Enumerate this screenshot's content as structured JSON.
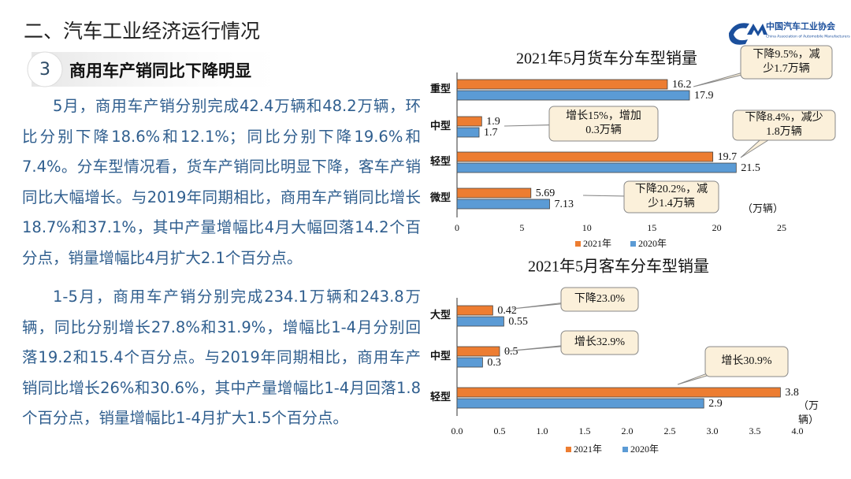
{
  "header": {
    "title": "二、汽车工业经济运行情况",
    "section_number": "3",
    "section_title": "商用车产销同比下降明显",
    "logo_name": "中国汽车工业协会",
    "logo_english": "China Association of Automobile Manufacturers"
  },
  "paragraphs": [
    "5月，商用车产销分别完成42.4万辆和48.2万辆，环比分别下降18.6%和12.1%；同比分别下降19.6%和7.4%。分车型情况看，货车产销同比明显下降，客车产销同比大幅增长。与2019年同期相比，商用车产销同比增长18.7%和37.1%，其中产量增幅比4月大幅回落14.2个百分点，销量增幅比4月扩大2.1个百分点。",
    "1-5月，商用车产销分别完成234.1万辆和243.8万辆，同比分别增长27.8%和31.9%，增幅比1-4月分别回落19.2和15.4个百分点。与2019年同期相比，商用车产销同比增长26%和30.6%，其中产量增幅比1-4月回落1.8个百分点，销量增幅比1-4月扩大1.5个百分点。"
  ],
  "chart_data": [
    {
      "type": "hbar",
      "title": "2021年5月货车分车型销量",
      "categories": [
        "重型",
        "中型",
        "轻型",
        "微型"
      ],
      "series": [
        {
          "name": "2021年",
          "color": "#ED7D31",
          "values": [
            16.2,
            1.9,
            19.7,
            5.69
          ]
        },
        {
          "name": "2020年",
          "color": "#5B9BD5",
          "values": [
            17.9,
            1.7,
            21.5,
            7.13
          ]
        }
      ],
      "xlim": [
        0,
        25
      ],
      "xticks": [
        0,
        5,
        10,
        15,
        20,
        25
      ],
      "unit_label": [
        "（万辆）"
      ],
      "annotations": [
        {
          "lines": [
            "下降9.5%，减",
            "少1.7万辆"
          ]
        },
        {
          "lines": [
            "增长15%，增加",
            "0.3万辆"
          ]
        },
        {
          "lines": [
            "下降8.4%，减少",
            "1.8万辆"
          ]
        },
        {
          "lines": [
            "下降20.2%，减",
            "少1.4万辆"
          ]
        }
      ]
    },
    {
      "type": "hbar",
      "title": "2021年5月客车分车型销量",
      "categories": [
        "大型",
        "中型",
        "轻型"
      ],
      "series": [
        {
          "name": "2021年",
          "color": "#ED7D31",
          "values": [
            0.42,
            0.5,
            3.8
          ]
        },
        {
          "name": "2020年",
          "color": "#5B9BD5",
          "values": [
            0.55,
            0.3,
            2.9
          ]
        }
      ],
      "xlim": [
        0,
        4
      ],
      "xticks": [
        {
          "value": 0,
          "label": "0.0"
        },
        0.5,
        {
          "value": 1,
          "label": "1.0"
        },
        1.5,
        {
          "value": 2,
          "label": "2.0"
        },
        2.5,
        {
          "value": 3,
          "label": "3.0"
        },
        3.5,
        {
          "value": 4,
          "label": "4.0"
        }
      ],
      "unit_label": [
        "（万",
        "辆）"
      ],
      "annotations": [
        {
          "lines": [
            "下降23.0%"
          ]
        },
        {
          "lines": [
            "增长32.9%"
          ]
        },
        {
          "lines": [
            "增长30.9%"
          ]
        }
      ]
    }
  ]
}
